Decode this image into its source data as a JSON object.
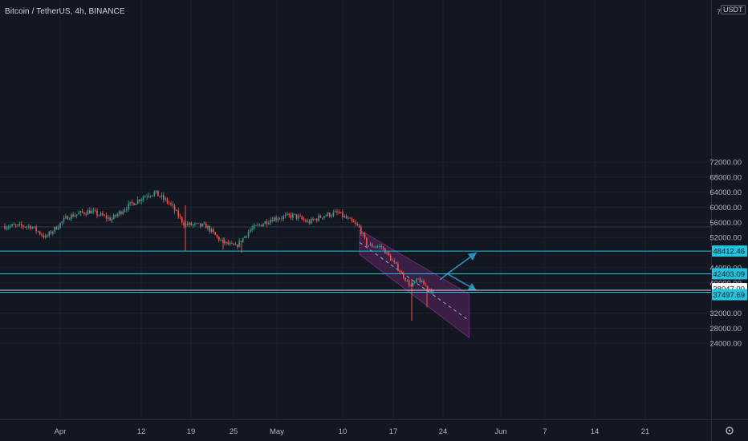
{
  "header": {
    "title": "Bitcoin / TetherUS, 4h, BINANCE",
    "currency_label": "USDT",
    "top_partial_label": "7"
  },
  "colors": {
    "background": "#131722",
    "up": "#26a69a",
    "down": "#ef5350",
    "hline": "#22c3dc",
    "channel_fill": "#4a2150",
    "arrow": "#2a8fbd",
    "price_tag_bg": "#22c3dc",
    "price_tag_white_bg": "#ffffff"
  },
  "chart_data": {
    "type": "candlestick",
    "title": "Bitcoin / TetherUS, 4h, BINANCE",
    "x_ticks": [
      "Apr",
      "12",
      "19",
      "25",
      "May",
      "10",
      "17",
      "24",
      "Jun",
      "7",
      "14",
      "21"
    ],
    "y_ticks": [
      "72000.00",
      "68000.00",
      "64000.00",
      "60000.00",
      "56000.00",
      "52000.00",
      "44000.00",
      "40000.00",
      "32000.00",
      "28000.00",
      "24000.00"
    ],
    "ylim": [
      22000,
      76000
    ],
    "horizontal_levels": [
      {
        "value": 48412.46,
        "label": "48412.46",
        "style": "cyan"
      },
      {
        "value": 42403.09,
        "label": "42403.09",
        "style": "cyan"
      },
      {
        "value": 38047.0,
        "label": "38047.00",
        "style": "white"
      },
      {
        "value": 37497.69,
        "label": "37497.69",
        "style": "cyan"
      }
    ],
    "faint_level": 54800,
    "price_path": [
      {
        "day": "Mar 28",
        "price": 55000
      },
      {
        "day": "Mar 30",
        "price": 52000
      },
      {
        "day": "Apr 2",
        "price": 57500
      },
      {
        "day": "Apr 5",
        "price": 59000
      },
      {
        "day": "Apr 8",
        "price": 56800
      },
      {
        "day": "Apr 10",
        "price": 60000
      },
      {
        "day": "Apr 13",
        "price": 63500
      },
      {
        "day": "Apr 14",
        "price": 63800
      },
      {
        "day": "Apr 16",
        "price": 61000
      },
      {
        "day": "Apr 18",
        "price": 55500
      },
      {
        "day": "Apr 21",
        "price": 55000
      },
      {
        "day": "Apr 23",
        "price": 51000
      },
      {
        "day": "Apr 25",
        "price": 49500
      },
      {
        "day": "Apr 27",
        "price": 54000
      },
      {
        "day": "Apr 30",
        "price": 57000
      },
      {
        "day": "May 3",
        "price": 57800
      },
      {
        "day": "May 5",
        "price": 56000
      },
      {
        "day": "May 7",
        "price": 57800
      },
      {
        "day": "May 9",
        "price": 58500
      },
      {
        "day": "May 11",
        "price": 56000
      },
      {
        "day": "May 12",
        "price": 54500
      },
      {
        "day": "May 13",
        "price": 50000
      },
      {
        "day": "May 15",
        "price": 49500
      },
      {
        "day": "May 17",
        "price": 44500
      },
      {
        "day": "May 19",
        "price": 39000
      },
      {
        "day": "May 20",
        "price": 41000
      },
      {
        "day": "May 22",
        "price": 37500
      },
      {
        "day": "May 23",
        "price": 38300
      }
    ],
    "drawings": {
      "channel_upper": [
        {
          "day": "May 12",
          "price": 54000
        },
        {
          "day": "May 27",
          "price": 37000
        }
      ],
      "channel_lower": [
        {
          "day": "May 12",
          "price": 47500
        },
        {
          "day": "May 27",
          "price": 25500
        }
      ],
      "channel_mid": [
        {
          "day": "May 12",
          "price": 50700
        },
        {
          "day": "May 27",
          "price": 30000
        }
      ],
      "projection_up": [
        {
          "day": "May 23",
          "price": 40800
        },
        {
          "day": "May 24",
          "price": 42403
        },
        {
          "day": "May 28",
          "price": 48000
        }
      ],
      "projection_down": [
        {
          "day": "May 24",
          "price": 42403
        },
        {
          "day": "May 28",
          "price": 38000
        }
      ]
    }
  }
}
